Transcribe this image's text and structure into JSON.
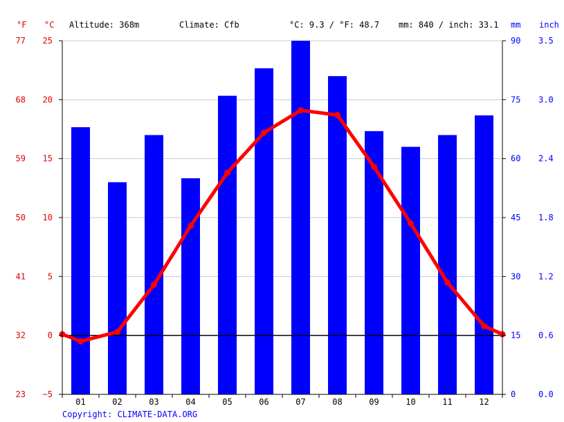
{
  "header": {
    "unit_f": "°F",
    "unit_c": "°C",
    "altitude": "Altitude: 368m",
    "climate": "Climate: Cfb",
    "avg_temp": "°C: 9.3 / °F: 48.7",
    "precip_total": "mm: 840 / inch: 33.1",
    "unit_mm": "mm",
    "unit_inch": "inch"
  },
  "footer": {
    "copyright": "Copyright: CLIMATE-DATA.ORG"
  },
  "colors": {
    "bars": "#0000ff",
    "temperature_line": "#ff0000",
    "left_axis_text": "#e00000",
    "right_axis_text": "#0000ff",
    "grid": "#c8c8c8",
    "zero_line": "#000000"
  },
  "chart_data": {
    "type": "bar+line",
    "categories": [
      "01",
      "02",
      "03",
      "04",
      "05",
      "06",
      "07",
      "08",
      "09",
      "10",
      "11",
      "12"
    ],
    "series": [
      {
        "type": "bar",
        "axis": "right",
        "values": [
          68,
          54,
          66,
          55,
          76,
          83,
          90,
          81,
          67,
          63,
          66,
          71
        ]
      },
      {
        "type": "line",
        "axis": "left",
        "values": [
          -0.5,
          0.3,
          4.3,
          9.3,
          13.8,
          17.2,
          19.1,
          18.7,
          14.3,
          9.5,
          4.5,
          0.8
        ]
      }
    ],
    "edge_temperature": 0.1,
    "left_axis_c": {
      "ticks": [
        25,
        20,
        15,
        10,
        5,
        0,
        -5
      ],
      "labels": [
        "25",
        "20",
        "15",
        "10",
        "5",
        "0",
        "−5"
      ],
      "ylim": [
        -5,
        25
      ]
    },
    "left_axis_f": {
      "labels": [
        "77",
        "68",
        "59",
        "50",
        "41",
        "32",
        "23"
      ]
    },
    "right_axis_mm": {
      "ticks": [
        90,
        75,
        60,
        45,
        30,
        15,
        0
      ],
      "labels": [
        "90",
        "75",
        "60",
        "45",
        "30",
        "15",
        "0"
      ],
      "ylim": [
        0,
        90
      ]
    },
    "right_axis_inch": {
      "labels": [
        "3.5",
        "3.0",
        "2.4",
        "1.8",
        "1.2",
        "0.6",
        "0.0"
      ]
    },
    "grid": true
  }
}
